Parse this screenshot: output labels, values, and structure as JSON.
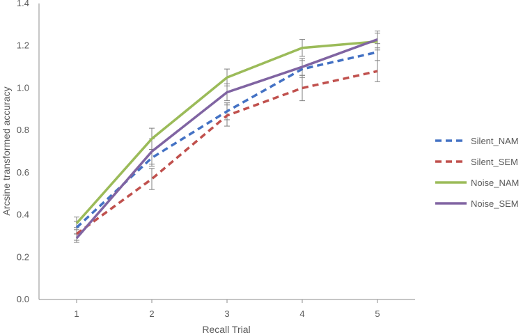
{
  "chart_data": {
    "type": "line",
    "title": "",
    "xlabel": "Recall Trial",
    "ylabel": "Arcsine transformed accuracy",
    "x": [
      1,
      2,
      3,
      4,
      5
    ],
    "x_tick_labels": [
      "1",
      "2",
      "3",
      "4",
      "5"
    ],
    "ylim": [
      0,
      1.4
    ],
    "y_tick_labels": [
      "0.0",
      "0.2",
      "0.4",
      "0.6",
      "0.8",
      "1.0",
      "1.2",
      "1.4"
    ],
    "y_ticks": [
      0,
      0.2,
      0.4,
      0.6,
      0.8,
      1.0,
      1.2,
      1.4
    ],
    "grid": false,
    "legend_position": "right",
    "series": [
      {
        "name": "Silent_NAM",
        "color": "#4472C4",
        "dash": "dashed",
        "values": [
          0.34,
          0.67,
          0.89,
          1.09,
          1.17
        ],
        "error": [
          0.03,
          0.04,
          0.04,
          0.04,
          0.04
        ]
      },
      {
        "name": "Silent_SEM",
        "color": "#C0504D",
        "dash": "dashed",
        "values": [
          0.31,
          0.57,
          0.87,
          1.0,
          1.08
        ],
        "error": [
          0.03,
          0.05,
          0.05,
          0.06,
          0.05
        ]
      },
      {
        "name": "Noise_NAM",
        "color": "#9BBB59",
        "dash": "solid",
        "values": [
          0.36,
          0.76,
          1.05,
          1.19,
          1.22
        ],
        "error": [
          0.03,
          0.05,
          0.04,
          0.04,
          0.04
        ]
      },
      {
        "name": "Noise_SEM",
        "color": "#8064A2",
        "dash": "solid",
        "values": [
          0.29,
          0.7,
          0.98,
          1.1,
          1.23
        ],
        "error": [
          0.02,
          0.06,
          0.04,
          0.04,
          0.04
        ]
      }
    ]
  }
}
